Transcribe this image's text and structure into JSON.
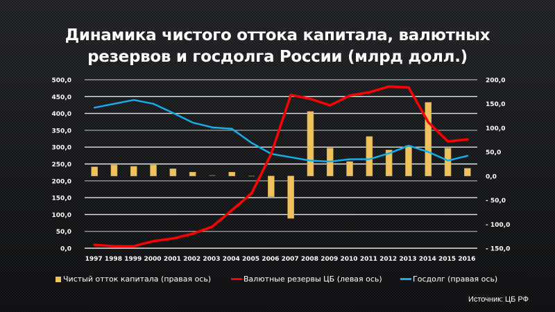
{
  "chart_data": {
    "type": "bar",
    "title": "Динамика чистого оттока капитала, валютных резервов и госдолга России (млрд долл.)",
    "title_lines": [
      "Динамика чистого оттока капитала, валютных",
      "резервов и госдолга России (млрд долл.)"
    ],
    "categories": [
      "1997",
      "1998",
      "1999",
      "2000",
      "2001",
      "2002",
      "2003",
      "2004",
      "2005",
      "2006",
      "2007",
      "2008",
      "2009",
      "2010",
      "2011",
      "2012",
      "2013",
      "2014",
      "2015",
      "2016"
    ],
    "left_axis": {
      "ylim": [
        0,
        500
      ],
      "ticks": [
        "0,0",
        "50,0",
        "100,0",
        "150,0",
        "200,0",
        "250,0",
        "300,0",
        "350,0",
        "400,0",
        "450,0",
        "500,0"
      ],
      "tick_values": [
        0,
        50,
        100,
        150,
        200,
        250,
        300,
        350,
        400,
        450,
        500
      ]
    },
    "right_axis": {
      "ylim": [
        -150,
        200
      ],
      "ticks": [
        "- 150,0",
        "- 100,0",
        "- 50,0",
        "0,0",
        "50,0",
        "100,0",
        "150,0",
        "200,0"
      ],
      "tick_values": [
        -150,
        -100,
        -50,
        0,
        50,
        100,
        150,
        200
      ]
    },
    "grid": true,
    "series": [
      {
        "name": "Чистый отток капитала (правая ось)",
        "type": "bar",
        "axis": "right",
        "color": "#f0c25e",
        "values": [
          19,
          23,
          20,
          23,
          15,
          8,
          2,
          8,
          1,
          -43,
          -88,
          134,
          58,
          30,
          82,
          54,
          63,
          153,
          58,
          16
        ]
      },
      {
        "name": "Валютные резервы ЦБ (левая ось)",
        "type": "line",
        "axis": "left",
        "color": "#ff0000",
        "values": [
          10,
          6,
          6,
          21,
          29,
          43,
          64,
          113,
          163,
          280,
          455,
          443,
          424,
          453,
          463,
          480,
          477,
          374,
          317,
          323
        ]
      },
      {
        "name": "Госдолг (правая ось)",
        "type": "line",
        "axis": "right",
        "color": "#12b0ea",
        "values": [
          142,
          150,
          158,
          150,
          131,
          111,
          101,
          98,
          69,
          46,
          39,
          32,
          30,
          35,
          35,
          47,
          63,
          50,
          32,
          42
        ]
      }
    ],
    "legend_position": "bottom",
    "source": "Источник: ЦБ РФ"
  }
}
